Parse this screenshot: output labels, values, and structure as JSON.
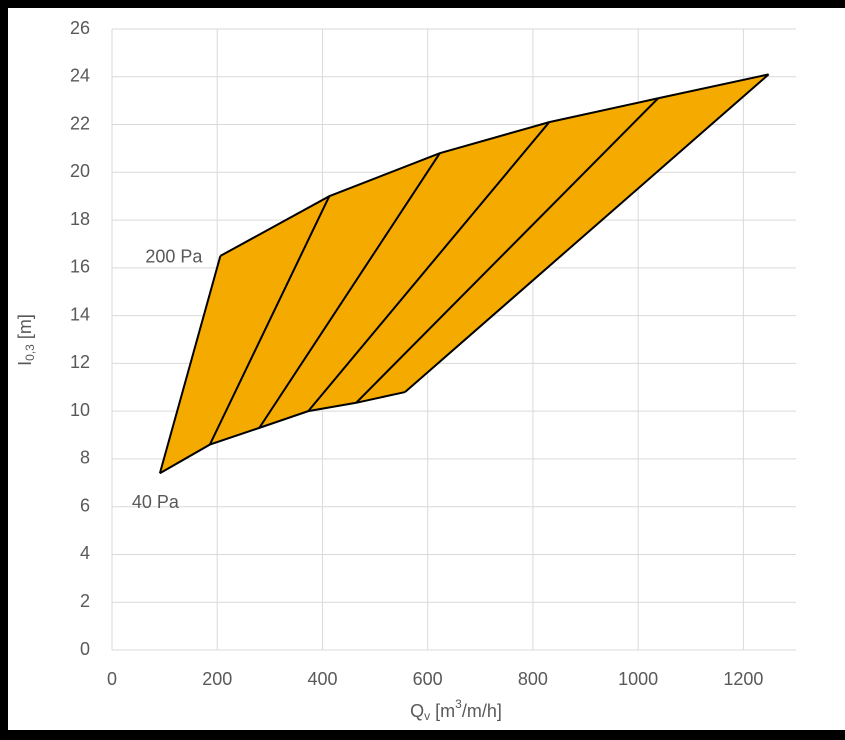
{
  "chart_data": {
    "type": "band",
    "x_label": {
      "main": "Q",
      "sub": "v",
      "mid": " [m",
      "sup": "3",
      "rest": "/m/h]"
    },
    "y_label": {
      "main": "I",
      "sub": "0,3",
      "rest": " [m]"
    },
    "fill": "#f5aa00",
    "line_color": "#000000",
    "series": [
      {
        "name": "40 Pa",
        "x": [
          91,
          186,
          280,
          373,
          464,
          557
        ],
        "values": [
          7.4,
          8.6,
          9.3,
          10.0,
          10.35,
          10.8
        ]
      },
      {
        "name": "200 Pa",
        "x": [
          206,
          413,
          623,
          831,
          1038,
          1248
        ],
        "values": [
          16.5,
          19.0,
          20.8,
          22.1,
          23.1,
          24.1
        ]
      }
    ],
    "xlim": [
      0,
      1300
    ],
    "xticks": [
      0,
      200,
      400,
      600,
      800,
      1000,
      1200
    ],
    "ylim": [
      0,
      26
    ],
    "yticks": [
      0,
      2,
      4,
      6,
      8,
      10,
      12,
      14,
      16,
      18,
      20,
      22,
      24,
      26
    ],
    "grid": true
  }
}
